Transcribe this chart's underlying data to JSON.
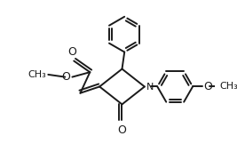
{
  "bg_color": "#ffffff",
  "line_color": "#1a1a1a",
  "lw": 1.4,
  "figsize": [
    2.67,
    1.62
  ],
  "dpi": 100,
  "xlim": [
    0,
    267
  ],
  "ylim": [
    0,
    162
  ]
}
